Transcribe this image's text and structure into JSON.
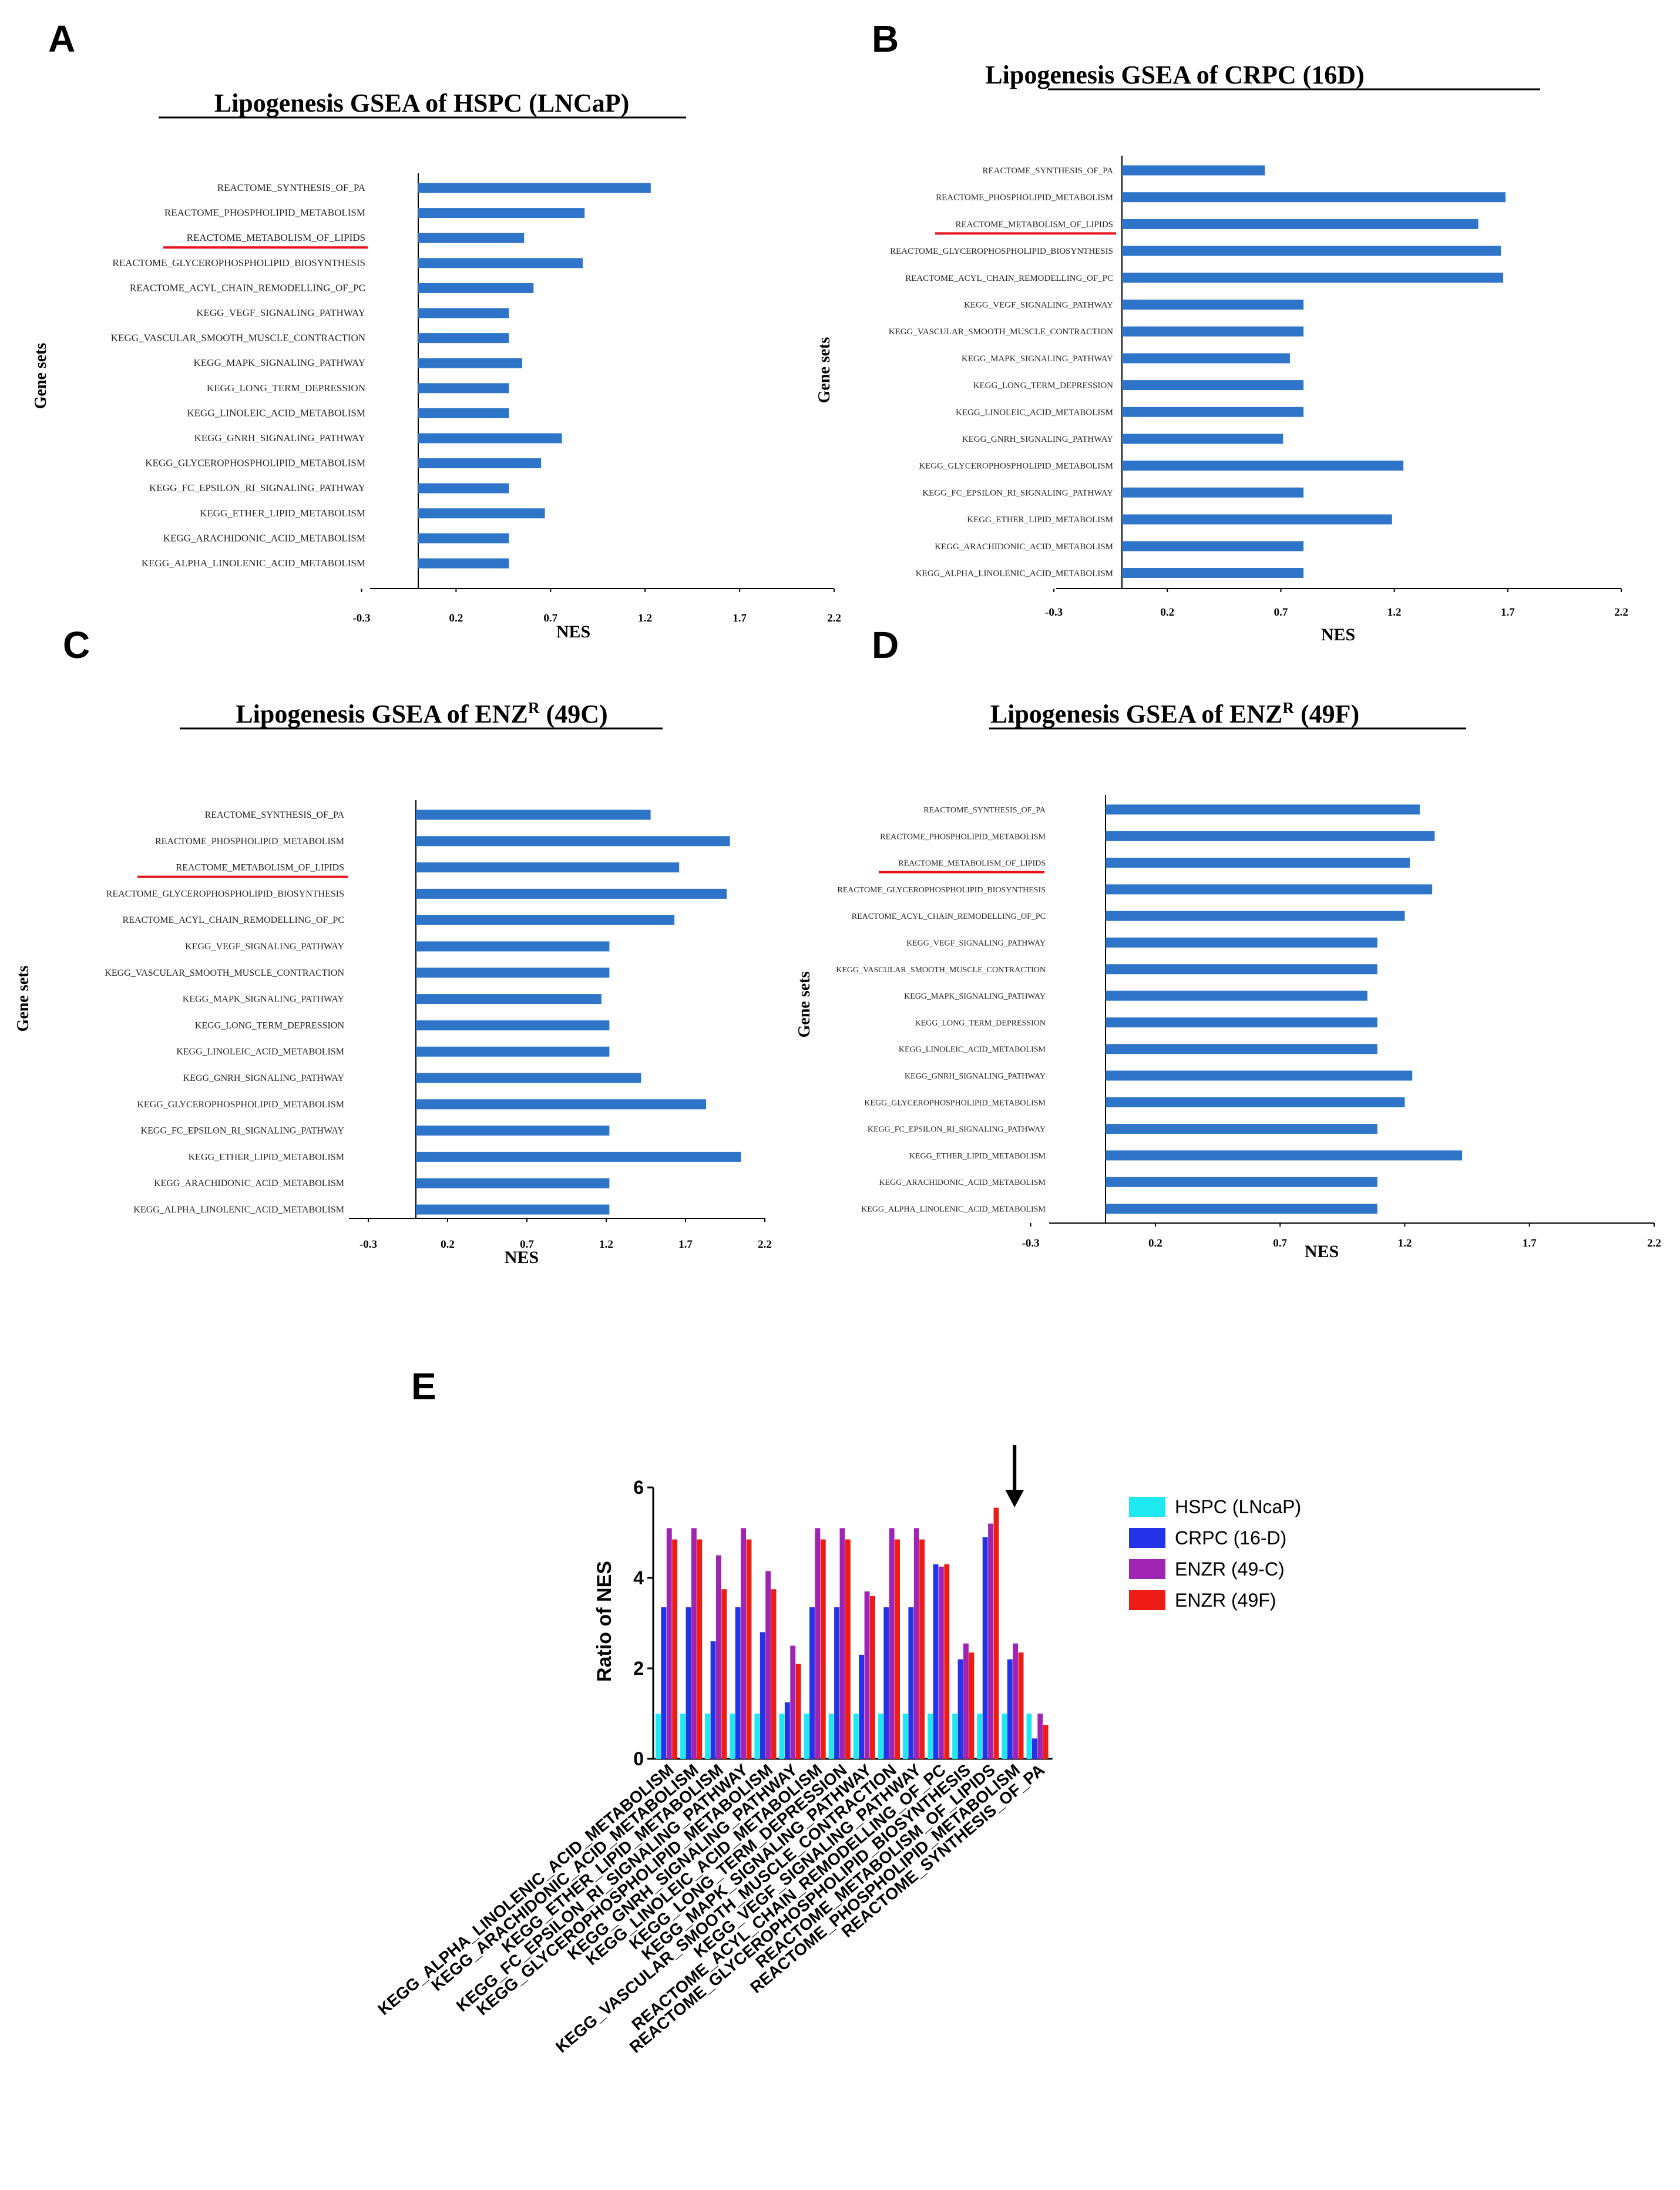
{
  "panels": [
    {
      "letter": "A",
      "title_parts": [
        "Lipogenesis GSEA of HSPC (LNCaP)"
      ],
      "ylabel": "Gene sets",
      "xlabel": "NES",
      "xlim": [
        -0.3,
        2.2
      ],
      "xticks": [
        "-0.3",
        "0.2",
        "0.7",
        "1.2",
        "1.7",
        "2.2"
      ],
      "highlight": "REACTOME_METABOLISM_OF_LIPIDS",
      "chart_data": {
        "type": "bar",
        "categories": [
          "REACTOME_SYNTHESIS_OF_PA",
          "REACTOME_PHOSPHOLIPID_METABOLISM",
          "REACTOME_METABOLISM_OF_LIPIDS",
          "REACTOME_GLYCEROPHOSPHOLIPID_BIOSYNTHESIS",
          "REACTOME_ACYL_CHAIN_REMODELLING_OF_PC",
          "KEGG_VEGF_SIGNALING_PATHWAY",
          "KEGG_VASCULAR_SMOOTH_MUSCLE_CONTRACTION",
          "KEGG_MAPK_SIGNALING_PATHWAY",
          "KEGG_LONG_TERM_DEPRESSION",
          "KEGG_LINOLEIC_ACID_METABOLISM",
          "KEGG_GNRH_SIGNALING_PATHWAY",
          "KEGG_GLYCEROPHOSPHOLIPID_METABOLISM",
          "KEGG_FC_EPSILON_RI_SIGNALING_PATHWAY",
          "KEGG_ETHER_LIPID_METABOLISM",
          "KEGG_ARACHIDONIC_ACID_METABOLISM",
          "KEGG_ALPHA_LINOLENIC_ACID_METABOLISM"
        ],
        "values": [
          1.23,
          0.88,
          0.56,
          0.87,
          0.61,
          0.48,
          0.48,
          0.55,
          0.48,
          0.48,
          0.76,
          0.65,
          0.48,
          0.67,
          0.48,
          0.48
        ]
      }
    },
    {
      "letter": "B",
      "title_parts": [
        "Lipogenesis GSEA of CRPC (16D)"
      ],
      "ylabel": "Gene sets",
      "xlabel": "NES",
      "xlim": [
        -0.3,
        2.2
      ],
      "xticks": [
        "-0.3",
        "0.2",
        "0.7",
        "1.2",
        "1.7",
        "2.2"
      ],
      "highlight": "REACTOME_METABOLISM_OF_LIPIDS",
      "chart_data": {
        "type": "bar",
        "categories": [
          "REACTOME_SYNTHESIS_OF_PA",
          "REACTOME_PHOSPHOLIPID_METABOLISM",
          "REACTOME_METABOLISM_OF_LIPIDS",
          "REACTOME_GLYCEROPHOSPHOLIPID_BIOSYNTHESIS",
          "REACTOME_ACYL_CHAIN_REMODELLING_OF_PC",
          "KEGG_VEGF_SIGNALING_PATHWAY",
          "KEGG_VASCULAR_SMOOTH_MUSCLE_CONTRACTION",
          "KEGG_MAPK_SIGNALING_PATHWAY",
          "KEGG_LONG_TERM_DEPRESSION",
          "KEGG_LINOLEIC_ACID_METABOLISM",
          "KEGG_GNRH_SIGNALING_PATHWAY",
          "KEGG_GLYCEROPHOSPHOLIPID_METABOLISM",
          "KEGG_FC_EPSILON_RI_SIGNALING_PATHWAY",
          "KEGG_ETHER_LIPID_METABOLISM",
          "KEGG_ARACHIDONIC_ACID_METABOLISM",
          "KEGG_ALPHA_LINOLENIC_ACID_METABOLISM"
        ],
        "values": [
          0.63,
          1.69,
          1.57,
          1.67,
          1.68,
          0.8,
          0.8,
          0.74,
          0.8,
          0.8,
          0.71,
          1.24,
          0.8,
          1.19,
          0.8,
          0.8
        ]
      }
    },
    {
      "letter": "C",
      "title_parts": [
        "Lipogenesis GSEA of ENZ",
        "R",
        " (49C)"
      ],
      "ylabel": "Gene sets",
      "xlabel": "NES",
      "xlim": [
        -0.3,
        2.2
      ],
      "xticks": [
        "-0.3",
        "0.2",
        "0.7",
        "1.2",
        "1.7",
        "2.2"
      ],
      "highlight": "REACTOME_METABOLISM_OF_LIPIDS",
      "chart_data": {
        "type": "bar",
        "categories": [
          "REACTOME_SYNTHESIS_OF_PA",
          "REACTOME_PHOSPHOLIPID_METABOLISM",
          "REACTOME_METABOLISM_OF_LIPIDS",
          "REACTOME_GLYCEROPHOSPHOLIPID_BIOSYNTHESIS",
          "REACTOME_ACYL_CHAIN_REMODELLING_OF_PC",
          "KEGG_VEGF_SIGNALING_PATHWAY",
          "KEGG_VASCULAR_SMOOTH_MUSCLE_CONTRACTION",
          "KEGG_MAPK_SIGNALING_PATHWAY",
          "KEGG_LONG_TERM_DEPRESSION",
          "KEGG_LINOLEIC_ACID_METABOLISM",
          "KEGG_GNRH_SIGNALING_PATHWAY",
          "KEGG_GLYCEROPHOSPHOLIPID_METABOLISM",
          "KEGG_FC_EPSILON_RI_SIGNALING_PATHWAY",
          "KEGG_ETHER_LIPID_METABOLISM",
          "KEGG_ARACHIDONIC_ACID_METABOLISM",
          "KEGG_ALPHA_LINOLENIC_ACID_METABOLISM"
        ],
        "values": [
          1.48,
          1.98,
          1.66,
          1.96,
          1.63,
          1.22,
          1.22,
          1.17,
          1.22,
          1.22,
          1.42,
          1.83,
          1.22,
          2.05,
          1.22,
          1.22
        ]
      }
    },
    {
      "letter": "D",
      "title_parts": [
        "Lipogenesis GSEA of ENZ",
        "R",
        " (49F)"
      ],
      "ylabel": "Gene sets",
      "xlabel": "NES",
      "xlim": [
        -0.3,
        2.2
      ],
      "xticks": [
        "-0.3",
        "0.2",
        "0.7",
        "1.2",
        "1.7",
        "2.2"
      ],
      "highlight": "REACTOME_METABOLISM_OF_LIPIDS",
      "chart_data": {
        "type": "bar",
        "categories": [
          "REACTOME_SYNTHESIS_OF_PA",
          "REACTOME_PHOSPHOLIPID_METABOLISM",
          "REACTOME_METABOLISM_OF_LIPIDS",
          "REACTOME_GLYCEROPHOSPHOLIPID_BIOSYNTHESIS",
          "REACTOME_ACYL_CHAIN_REMODELLING_OF_PC",
          "KEGG_VEGF_SIGNALING_PATHWAY",
          "KEGG_VASCULAR_SMOOTH_MUSCLE_CONTRACTION",
          "KEGG_MAPK_SIGNALING_PATHWAY",
          "KEGG_LONG_TERM_DEPRESSION",
          "KEGG_LINOLEIC_ACID_METABOLISM",
          "KEGG_GNRH_SIGNALING_PATHWAY",
          "KEGG_GLYCEROPHOSPHOLIPID_METABOLISM",
          "KEGG_FC_EPSILON_RI_SIGNALING_PATHWAY",
          "KEGG_ETHER_LIPID_METABOLISM",
          "KEGG_ARACHIDONIC_ACID_METABOLISM",
          "KEGG_ALPHA_LINOLENIC_ACID_METABOLISM"
        ],
        "values": [
          1.26,
          1.32,
          1.22,
          1.31,
          1.2,
          1.09,
          1.09,
          1.05,
          1.09,
          1.09,
          1.23,
          1.2,
          1.09,
          1.43,
          1.09,
          1.09
        ]
      }
    }
  ],
  "panel_e": {
    "letter": "E",
    "ylabel": "Ratio of NES",
    "yticks": [
      "0",
      "2",
      "4",
      "6"
    ],
    "ylim": [
      0,
      6
    ],
    "legend": [
      "HSPC (LNcaP)",
      "CRPC (16-D)",
      "ENZR (49-C)",
      "ENZR (49F)"
    ],
    "colors": [
      "#1ee8f0",
      "#2233e8",
      "#a024b4",
      "#ee1c14"
    ],
    "arrow_index": 14,
    "chart_data": {
      "type": "bar",
      "categories": [
        "KEGG_ALPHA_LINOLENIC_ACID_METABOLISM",
        "KEGG_ARACHIDONIC_ACID_METABOLISM",
        "KEGG_ETHER_LIPID_METABOLISM",
        "KEGG_FC_EPSILON_RI_SIGNALING_PATHWAY",
        "KEGG_GLYCEROPHOSPHOLIPID_METABOLISM",
        "KEGG_GNRH_SIGNALING_PATHWAY",
        "KEGG_LINOLEIC_ACID_METABOLISM",
        "KEGG_LONG_TERM_DEPRESSION",
        "KEGG_MAPK_SIGNALING_PATHWAY",
        "KEGG_VASCULAR_SMOOTH_MUSCLE_CONTRACTION",
        "KEGG_VEGF_SIGNALING_PATHWAY",
        "REACTOME_ACYL_CHAIN_REMODELLING_OF_PC",
        "REACTOME_GLYCEROPHOSPHOLIPID_BIOSYNTHESIS",
        "REACTOME_METABOLISM_OF_LIPIDS",
        "REACTOME_PHOSPHOLIPID_METABOLISM",
        "REACTOME_SYNTHESIS_OF_PA"
      ],
      "series": [
        {
          "name": "HSPC (LNcaP)",
          "values": [
            1,
            1,
            1,
            1,
            1,
            1,
            1,
            1,
            1,
            1,
            1,
            1,
            1,
            1,
            1,
            1
          ]
        },
        {
          "name": "CRPC (16-D)",
          "values": [
            3.35,
            3.35,
            2.6,
            3.35,
            2.8,
            1.25,
            3.35,
            3.35,
            2.3,
            3.35,
            3.35,
            4.3,
            2.2,
            4.9,
            2.2,
            0.45
          ]
        },
        {
          "name": "ENZR (49-C)",
          "values": [
            5.1,
            5.1,
            4.5,
            5.1,
            4.15,
            2.5,
            5.1,
            5.1,
            3.7,
            5.1,
            5.1,
            4.25,
            2.55,
            5.2,
            2.55,
            1.0
          ]
        },
        {
          "name": "ENZR (49F)",
          "values": [
            4.85,
            4.85,
            3.75,
            4.85,
            3.75,
            2.1,
            4.85,
            4.85,
            3.6,
            4.85,
            4.85,
            4.3,
            2.35,
            5.55,
            2.35,
            0.75
          ]
        }
      ]
    }
  }
}
